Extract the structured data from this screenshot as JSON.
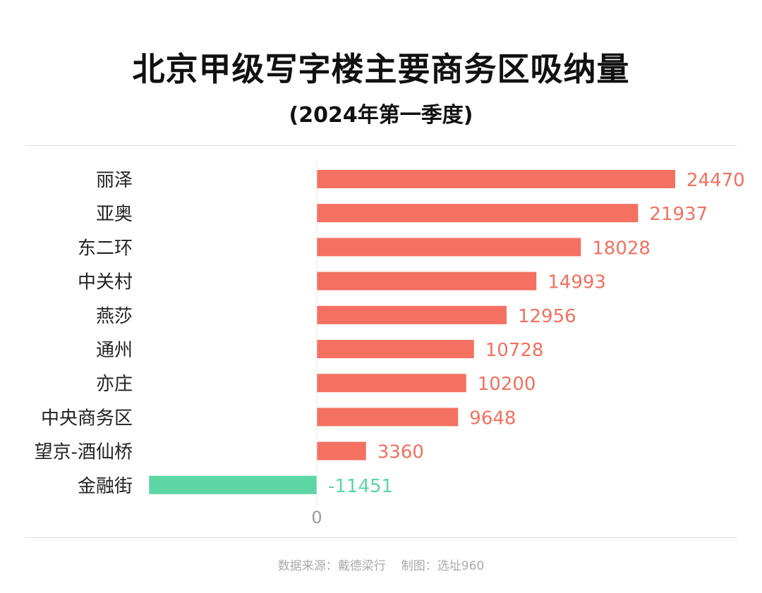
{
  "header": {
    "title": "北京甲级写字楼主要商务区吸纳量",
    "subtitle": "(2024年第一季度)"
  },
  "footer": {
    "source": "数据来源：戴德梁行",
    "credit": "制图：选址960"
  },
  "colors": {
    "positive": "#f47060",
    "negative": "#5bd6a4",
    "zero_label": "#999999",
    "category_label": "#222222"
  },
  "chart_data": {
    "type": "bar",
    "orientation": "horizontal",
    "title": "北京甲级写字楼主要商务区吸纳量",
    "subtitle": "(2024年第一季度)",
    "categories": [
      "丽泽",
      "亚奥",
      "东二环",
      "中关村",
      "燕莎",
      "通州",
      "亦庄",
      "中央商务区",
      "望京-酒仙桥",
      "金融街"
    ],
    "values": [
      24470,
      21937,
      18028,
      14993,
      12956,
      10728,
      10200,
      9648,
      3360,
      -11451
    ],
    "x_tick_labels": [
      "0"
    ],
    "xlim": [
      -11451,
      24470
    ],
    "grid": false,
    "legend": false
  }
}
